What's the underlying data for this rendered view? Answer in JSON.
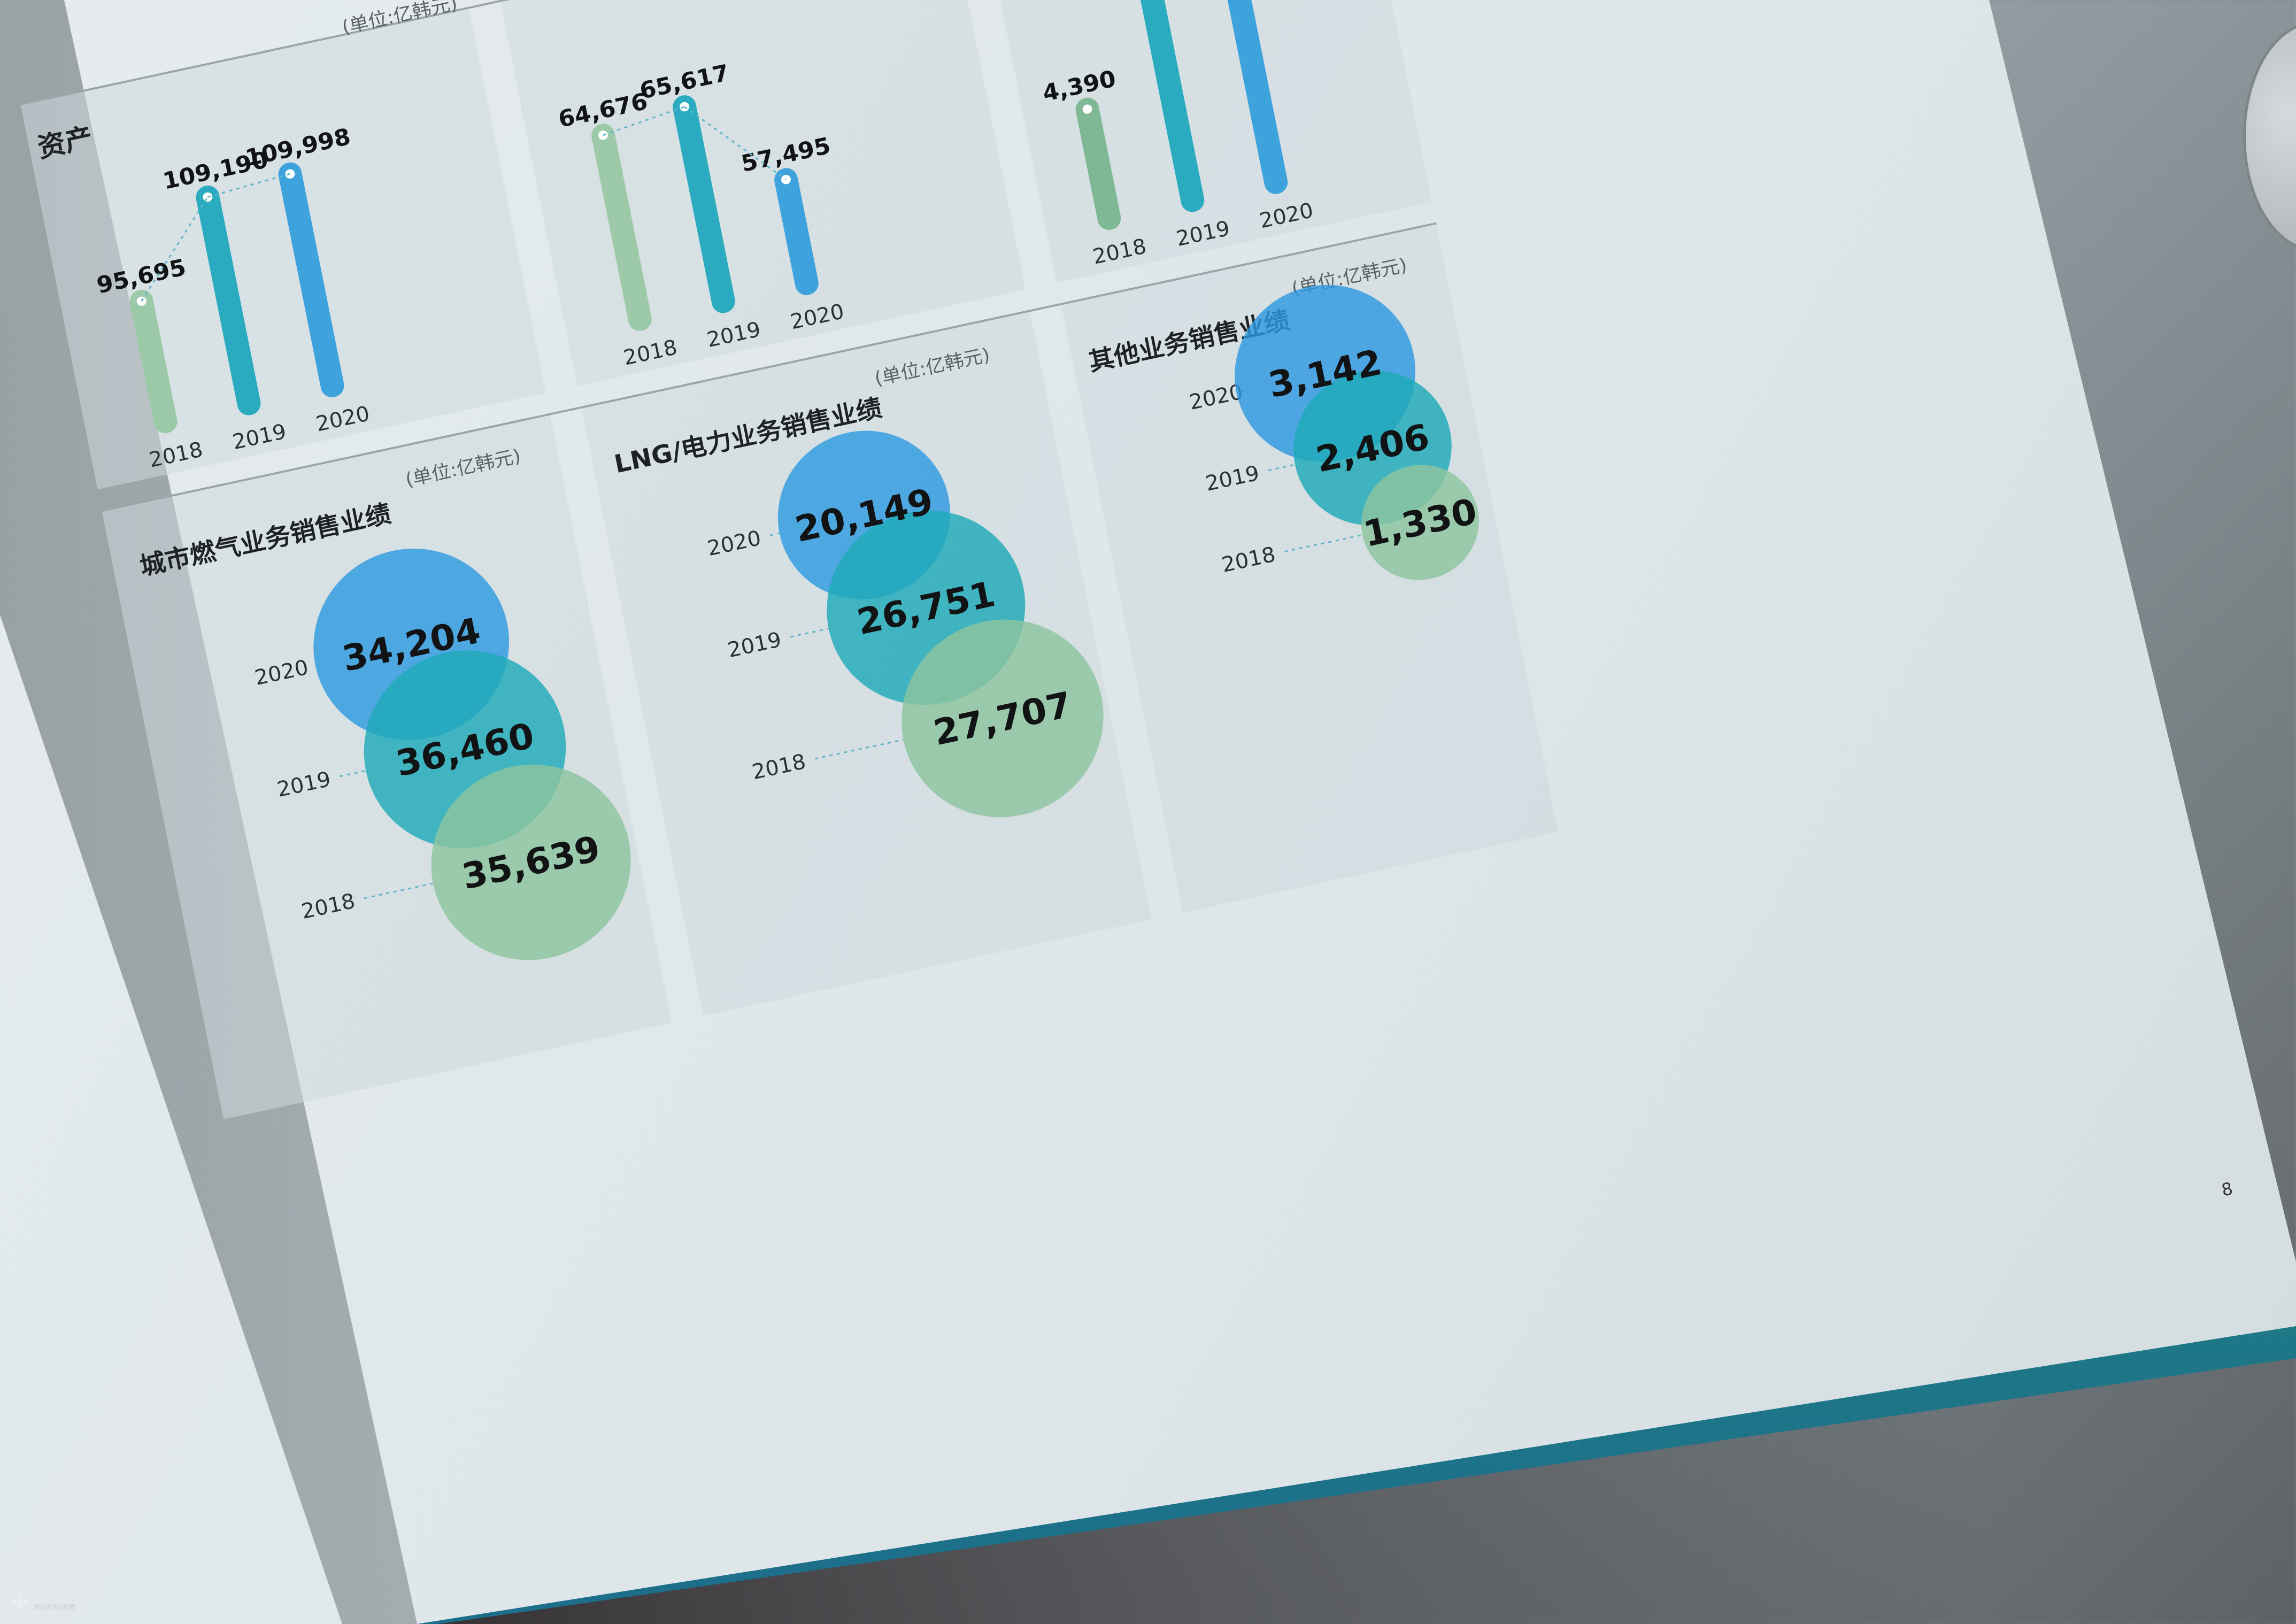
{
  "chart_data": [
    {
      "type": "bar",
      "title": "资产",
      "categories": [
        "2018",
        "2019",
        "2020"
      ],
      "values": [
        95695,
        109190,
        109998
      ],
      "value_labels": [
        "95,695",
        "109,190",
        "109,998"
      ],
      "colors": [
        "#9ccaa9",
        "#2aabc0",
        "#3ea2dc"
      ]
    },
    {
      "type": "bar",
      "title": "",
      "categories": [
        "2018",
        "2019",
        "2020"
      ],
      "values": [
        64676,
        65617,
        57495
      ],
      "value_labels": [
        "64,676",
        "65,617",
        "57,495"
      ],
      "colors": [
        "#9ccaa9",
        "#2aabc0",
        "#3ea2dc"
      ]
    },
    {
      "type": "bar",
      "title": "",
      "categories": [
        "2018",
        "2019",
        "2020"
      ],
      "values": [
        4390,
        null,
        null
      ],
      "value_labels": [
        "4,390",
        "",
        ""
      ],
      "colors": [
        "#7fb894",
        "#2aabc0",
        "#3ea2dc"
      ]
    },
    {
      "type": "bubble",
      "title": "城市燃气业务销售业绩",
      "unit": "(单位:亿韩元)",
      "categories": [
        "2020",
        "2019",
        "2018"
      ],
      "values": [
        34204,
        36460,
        35639
      ],
      "value_labels": [
        "34,204",
        "36,460",
        "35,639"
      ],
      "colors": [
        "#2e9ae0",
        "#1fa9b8",
        "#8cc49f"
      ]
    },
    {
      "type": "bubble",
      "title": "LNG/电力业务销售业绩",
      "unit": "(单位:亿韩元)",
      "categories": [
        "2020",
        "2019",
        "2018"
      ],
      "values": [
        20149,
        26751,
        27707
      ],
      "value_labels": [
        "20,149",
        "26,751",
        "27,707"
      ],
      "colors": [
        "#2e9ae0",
        "#1fa9b8",
        "#8cc49f"
      ]
    },
    {
      "type": "bubble",
      "title": "其他业务销售业绩",
      "unit": "(单位:亿韩元)",
      "categories": [
        "2020",
        "2019",
        "2018"
      ],
      "values": [
        3142,
        2406,
        1330
      ],
      "value_labels": [
        "3,142",
        "2,406",
        "1,330"
      ],
      "colors": [
        "#2e9ae0",
        "#1fa9b8",
        "#8cc49f"
      ]
    }
  ],
  "top_unit_label": "(单位:亿韩元)",
  "page_number": "8",
  "watermark": {
    "line1": "澳享品牌设计",
    "line2": "精选网作品收藏"
  }
}
